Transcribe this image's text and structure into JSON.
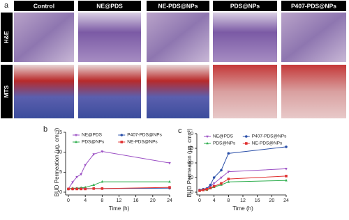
{
  "figure": {
    "panel_a": "a",
    "columns": [
      "Control",
      "NE@PDS",
      "NE-PDS@NPs",
      "PDS@NPs",
      "P407-PDS@NPs"
    ],
    "rows": [
      "H&E",
      "MTS"
    ]
  },
  "chart_data": [
    {
      "type": "line",
      "panel": "b",
      "xlabel": "Time (h)",
      "ylabel": "BUD Permeation (μg. cm⁻²)",
      "x": [
        0,
        1,
        2,
        3,
        4,
        6,
        8,
        24
      ],
      "xlim": [
        0,
        24
      ],
      "xticks": [
        0,
        4,
        8,
        12,
        16,
        20,
        24
      ],
      "ylim": [
        0,
        15
      ],
      "yticks": [
        0,
        5,
        10,
        15
      ],
      "series": [
        {
          "name": "NE@PDS",
          "color": "#9b4fc4",
          "marker": "triangle-down",
          "values": [
            0.8,
            2.5,
            3.8,
            4.5,
            6.8,
            9.5,
            10.2,
            7.3
          ]
        },
        {
          "name": "P407-PDS@NPs",
          "color": "#2a4fa8",
          "marker": "circle",
          "values": [
            0.8,
            0.8,
            0.9,
            0.9,
            0.9,
            0.9,
            0.9,
            1.0
          ]
        },
        {
          "name": "PDS@NPs",
          "color": "#2eae4e",
          "marker": "triangle",
          "values": [
            0.8,
            1.0,
            1.0,
            1.1,
            1.2,
            1.8,
            2.6,
            2.6
          ]
        },
        {
          "name": "NE-PDS@NPs",
          "color": "#e03030",
          "marker": "square",
          "values": [
            0.8,
            0.8,
            0.8,
            0.8,
            0.8,
            0.9,
            0.9,
            1.2
          ]
        }
      ]
    },
    {
      "type": "line",
      "panel": "c",
      "xlabel": "Time (h)",
      "ylabel": "BUD Permeation (μg. cm⁻²)",
      "x": [
        0,
        1,
        2,
        3,
        4,
        6,
        8,
        24
      ],
      "xlim": [
        0,
        24
      ],
      "xticks": [
        0,
        4,
        8,
        12,
        16,
        20,
        24
      ],
      "ylim": [
        0,
        80
      ],
      "yticks": [
        0,
        20,
        40,
        60,
        80
      ],
      "series": [
        {
          "name": "NE@PDS",
          "color": "#9b4fc4",
          "marker": "triangle-down",
          "values": [
            3,
            4,
            5,
            8,
            12,
            20,
            28,
            32
          ]
        },
        {
          "name": "P407-PDS@NPs",
          "color": "#2a4fa8",
          "marker": "circle",
          "values": [
            3,
            4,
            5,
            10,
            20,
            30,
            53,
            62
          ]
        },
        {
          "name": "PDS@NPs",
          "color": "#2eae4e",
          "marker": "triangle",
          "values": [
            2,
            3,
            3,
            5,
            7,
            10,
            14,
            16
          ]
        },
        {
          "name": "NE-PDS@NPs",
          "color": "#e03030",
          "marker": "square",
          "values": [
            2,
            3,
            4,
            6,
            8,
            12,
            18,
            22
          ]
        }
      ]
    }
  ]
}
